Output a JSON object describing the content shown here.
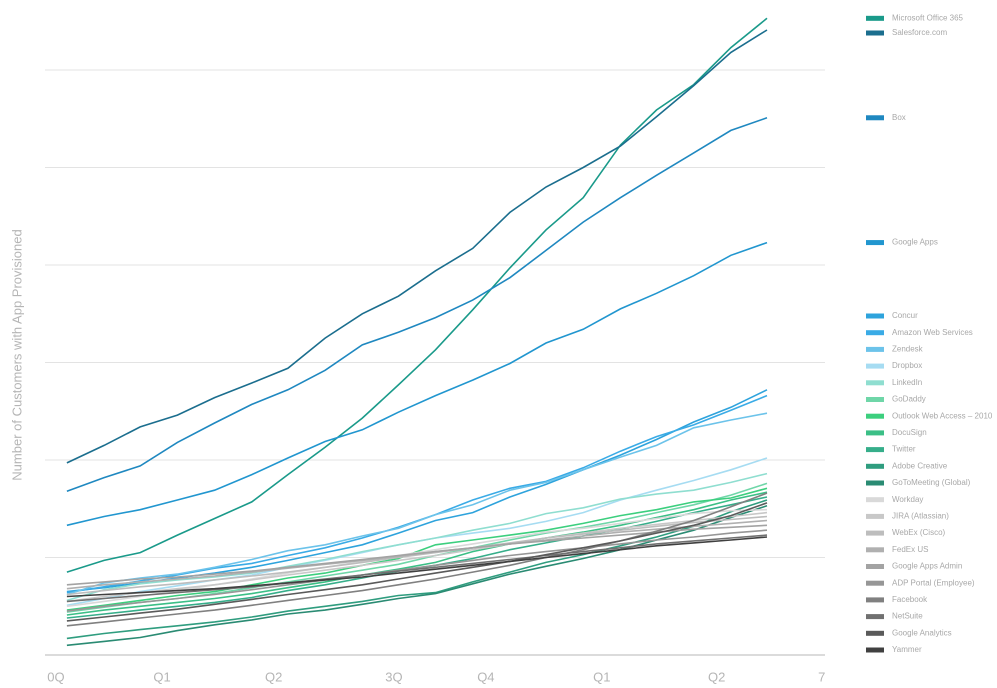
{
  "chart_data": {
    "type": "line",
    "y_label": "Number of Customers with App Provisioned",
    "xlim": [
      -0.1,
      7.03
    ],
    "xticks": [
      {
        "value": 0,
        "label": "0Q"
      },
      {
        "value": 0.97,
        "label": "Q1"
      },
      {
        "value": 1.99,
        "label": "Q2"
      },
      {
        "value": 3.09,
        "label": "3Q"
      },
      {
        "value": 3.93,
        "label": "Q4"
      },
      {
        "value": 4.99,
        "label": "Q1"
      },
      {
        "value": 6.04,
        "label": "Q2"
      },
      7
    ],
    "ylim": [
      0,
      6.6
    ],
    "yticks": [
      0,
      1,
      2,
      3,
      4,
      5,
      6
    ],
    "grid": true,
    "legend": "right",
    "x": [
      0.1,
      0.44,
      0.77,
      1.11,
      1.45,
      1.79,
      2.12,
      2.46,
      2.8,
      3.13,
      3.47,
      3.81,
      4.15,
      4.48,
      4.82,
      5.16,
      5.49,
      5.83,
      6.17,
      6.5
    ],
    "series": [
      {
        "name": "Microsoft Office 365",
        "color": "#1a9a8a",
        "values": [
          0.85,
          0.97,
          1.05,
          1.23,
          1.4,
          1.57,
          1.85,
          2.13,
          2.43,
          2.77,
          3.13,
          3.54,
          3.97,
          4.36,
          4.69,
          5.23,
          5.59,
          5.85,
          6.23,
          6.53
        ]
      },
      {
        "name": "Salesforce.com",
        "color": "#1b6e8e",
        "values": [
          1.97,
          2.15,
          2.34,
          2.46,
          2.64,
          2.79,
          2.94,
          3.25,
          3.5,
          3.68,
          3.94,
          4.17,
          4.54,
          4.8,
          5.0,
          5.22,
          5.52,
          5.84,
          6.18,
          6.41
        ]
      },
      {
        "name": "Box",
        "color": "#1f88c0",
        "values": [
          1.68,
          1.82,
          1.94,
          2.18,
          2.38,
          2.57,
          2.72,
          2.92,
          3.18,
          3.31,
          3.46,
          3.64,
          3.87,
          4.15,
          4.44,
          4.69,
          4.92,
          5.15,
          5.38,
          5.51
        ]
      },
      {
        "name": "Google Apps",
        "color": "#2196cf",
        "values": [
          1.33,
          1.42,
          1.49,
          1.59,
          1.69,
          1.85,
          2.02,
          2.19,
          2.31,
          2.49,
          2.66,
          2.82,
          2.99,
          3.2,
          3.34,
          3.55,
          3.71,
          3.89,
          4.1,
          4.23
        ]
      },
      {
        "name": "Concur",
        "color": "#2ea3dc",
        "values": [
          0.65,
          0.69,
          0.74,
          0.79,
          0.84,
          0.9,
          0.97,
          1.05,
          1.13,
          1.25,
          1.38,
          1.46,
          1.62,
          1.75,
          1.9,
          2.05,
          2.21,
          2.39,
          2.54,
          2.72
        ]
      },
      {
        "name": "Amazon Web Services",
        "color": "#3aabe6",
        "values": [
          0.64,
          0.7,
          0.76,
          0.82,
          0.89,
          0.94,
          1.02,
          1.1,
          1.2,
          1.31,
          1.44,
          1.59,
          1.71,
          1.78,
          1.92,
          2.09,
          2.24,
          2.36,
          2.51,
          2.66
        ]
      },
      {
        "name": "Zendesk",
        "color": "#6cc3ea",
        "values": [
          0.62,
          0.74,
          0.79,
          0.83,
          0.9,
          0.98,
          1.07,
          1.13,
          1.22,
          1.3,
          1.44,
          1.54,
          1.69,
          1.77,
          1.9,
          2.03,
          2.15,
          2.33,
          2.41,
          2.48
        ]
      },
      {
        "name": "Dropbox",
        "color": "#a6dcf2",
        "values": [
          0.51,
          0.58,
          0.65,
          0.71,
          0.77,
          0.82,
          0.9,
          0.97,
          1.05,
          1.13,
          1.2,
          1.25,
          1.3,
          1.37,
          1.46,
          1.59,
          1.69,
          1.79,
          1.9,
          2.02
        ]
      },
      {
        "name": "LinkedIn",
        "color": "#8fded0",
        "values": [
          0.56,
          0.67,
          0.73,
          0.77,
          0.8,
          0.84,
          0.91,
          0.98,
          1.06,
          1.13,
          1.2,
          1.28,
          1.35,
          1.45,
          1.51,
          1.6,
          1.65,
          1.69,
          1.77,
          1.86
        ]
      },
      {
        "name": "GoDaddy",
        "color": "#6fd6a8",
        "values": [
          0.44,
          0.49,
          0.54,
          0.58,
          0.63,
          0.69,
          0.75,
          0.81,
          0.87,
          0.93,
          1.02,
          1.1,
          1.18,
          1.25,
          1.31,
          1.38,
          1.46,
          1.54,
          1.64,
          1.76
        ]
      },
      {
        "name": "Outlook Web Access – 2010",
        "color": "#3ccf7e",
        "values": [
          0.46,
          0.51,
          0.56,
          0.61,
          0.65,
          0.72,
          0.79,
          0.84,
          0.92,
          0.99,
          1.13,
          1.18,
          1.23,
          1.28,
          1.35,
          1.43,
          1.49,
          1.57,
          1.61,
          1.71
        ]
      },
      {
        "name": "DocuSign",
        "color": "#3bbf86",
        "values": [
          0.41,
          0.46,
          0.5,
          0.54,
          0.58,
          0.63,
          0.69,
          0.75,
          0.82,
          0.88,
          0.95,
          1.06,
          1.14,
          1.2,
          1.26,
          1.33,
          1.41,
          1.49,
          1.59,
          1.67
        ]
      },
      {
        "name": "Twitter",
        "color": "#36ae8a",
        "values": [
          0.38,
          0.42,
          0.46,
          0.5,
          0.54,
          0.59,
          0.66,
          0.72,
          0.79,
          0.86,
          0.92,
          0.99,
          1.08,
          1.15,
          1.22,
          1.29,
          1.37,
          1.46,
          1.54,
          1.62
        ]
      },
      {
        "name": "Adobe Creative",
        "color": "#2f9d7f",
        "values": [
          0.17,
          0.22,
          0.26,
          0.3,
          0.34,
          0.39,
          0.45,
          0.5,
          0.55,
          0.61,
          0.64,
          0.75,
          0.85,
          0.95,
          1.03,
          1.12,
          1.21,
          1.32,
          1.47,
          1.59
        ]
      },
      {
        "name": "GoToMeeting (Global)",
        "color": "#2a8b73",
        "values": [
          0.1,
          0.14,
          0.18,
          0.25,
          0.31,
          0.36,
          0.42,
          0.46,
          0.52,
          0.58,
          0.63,
          0.73,
          0.83,
          0.91,
          0.99,
          1.08,
          1.18,
          1.28,
          1.41,
          1.53
        ]
      },
      {
        "name": "Workday",
        "color": "#d9d9d9",
        "values": [
          0.5,
          0.55,
          0.6,
          0.66,
          0.72,
          0.78,
          0.84,
          0.9,
          0.96,
          1.02,
          1.08,
          1.14,
          1.2,
          1.26,
          1.3,
          1.35,
          1.4,
          1.45,
          1.48,
          1.49
        ]
      },
      {
        "name": "JIRA (Atlassian)",
        "color": "#c8c8c8",
        "values": [
          0.55,
          0.6,
          0.64,
          0.68,
          0.72,
          0.77,
          0.82,
          0.87,
          0.92,
          0.97,
          1.02,
          1.08,
          1.14,
          1.2,
          1.25,
          1.3,
          1.34,
          1.38,
          1.42,
          1.46
        ]
      },
      {
        "name": "WebEx (Cisco)",
        "color": "#bdbdbd",
        "values": [
          0.62,
          0.66,
          0.7,
          0.73,
          0.77,
          0.81,
          0.85,
          0.9,
          0.95,
          1.0,
          1.05,
          1.1,
          1.15,
          1.2,
          1.24,
          1.28,
          1.32,
          1.36,
          1.39,
          1.42
        ]
      },
      {
        "name": "FedEx US",
        "color": "#b0b0b0",
        "values": [
          0.68,
          0.72,
          0.75,
          0.78,
          0.81,
          0.85,
          0.89,
          0.93,
          0.97,
          1.01,
          1.06,
          1.1,
          1.14,
          1.18,
          1.22,
          1.26,
          1.29,
          1.32,
          1.35,
          1.38
        ]
      },
      {
        "name": "Google Apps Admin",
        "color": "#a3a3a3",
        "values": [
          0.72,
          0.75,
          0.78,
          0.8,
          0.83,
          0.86,
          0.9,
          0.94,
          0.98,
          1.02,
          1.06,
          1.1,
          1.14,
          1.17,
          1.2,
          1.23,
          1.26,
          1.29,
          1.31,
          1.33
        ]
      },
      {
        "name": "ADP Portal (Employee)",
        "color": "#969696",
        "values": [
          0.45,
          0.5,
          0.54,
          0.58,
          0.62,
          0.67,
          0.72,
          0.77,
          0.82,
          0.87,
          0.92,
          0.97,
          1.02,
          1.06,
          1.1,
          1.14,
          1.18,
          1.21,
          1.25,
          1.28
        ]
      },
      {
        "name": "Facebook",
        "color": "#808080",
        "values": [
          0.3,
          0.34,
          0.38,
          0.42,
          0.46,
          0.51,
          0.56,
          0.61,
          0.66,
          0.72,
          0.78,
          0.85,
          0.92,
          1.0,
          1.08,
          1.17,
          1.27,
          1.38,
          1.52,
          1.66
        ]
      },
      {
        "name": "NetSuite",
        "color": "#707070",
        "values": [
          0.55,
          0.58,
          0.61,
          0.64,
          0.67,
          0.7,
          0.74,
          0.78,
          0.82,
          0.86,
          0.9,
          0.94,
          0.98,
          1.02,
          1.06,
          1.1,
          1.14,
          1.17,
          1.2,
          1.23
        ]
      },
      {
        "name": "Google Analytics",
        "color": "#5a5a5a",
        "values": [
          0.35,
          0.39,
          0.43,
          0.47,
          0.52,
          0.57,
          0.62,
          0.67,
          0.72,
          0.78,
          0.84,
          0.9,
          0.96,
          1.03,
          1.1,
          1.17,
          1.25,
          1.33,
          1.43,
          1.56
        ]
      },
      {
        "name": "Yammer",
        "color": "#404040",
        "values": [
          0.6,
          0.62,
          0.64,
          0.66,
          0.68,
          0.71,
          0.74,
          0.77,
          0.8,
          0.84,
          0.88,
          0.92,
          0.96,
          1.0,
          1.04,
          1.08,
          1.12,
          1.15,
          1.18,
          1.21
        ]
      }
    ]
  }
}
